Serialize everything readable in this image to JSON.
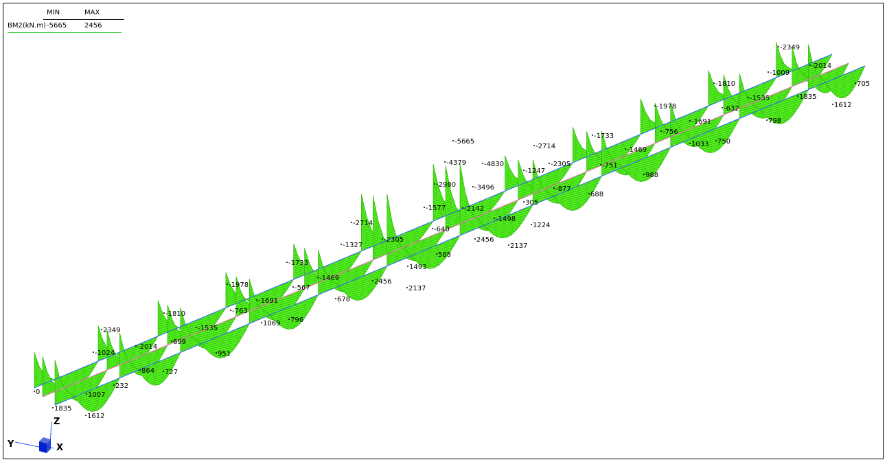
{
  "legend": {
    "col_min": "MIN",
    "col_max": "MAX",
    "quantity": "BM2(kN.m)",
    "min_value": "-5665",
    "max_value": "2456",
    "line_color": "#33cc33"
  },
  "colors": {
    "fill": "#55ee22",
    "hatch": "#22aa00",
    "beam": "#3366ff",
    "beam_accent": "#ff66cc",
    "cube": "#0022cc"
  },
  "axes": {
    "z": "Z",
    "y": "Y",
    "x": "X"
  },
  "values": [
    "2349",
    "-1024",
    "-2014",
    "864",
    "727",
    "699",
    "-1535",
    "951",
    "-1810",
    "-763",
    "-1691",
    "1069",
    "796",
    "-1978",
    "-567",
    "-1469",
    "678",
    "-1733",
    "-1327",
    "-2305",
    "2456",
    "2137",
    "1493",
    "588",
    "-2714",
    "-1577",
    "-640",
    "-2980",
    "-4379",
    "-5665",
    "-4830",
    "-3496",
    "-2142",
    "-1498",
    "2456",
    "2137",
    "305",
    "1224",
    "-1247",
    "-2714",
    "-2305",
    "-877",
    "688",
    "-1733",
    "-751",
    "-1469",
    "988",
    "-1978",
    "-756",
    "-1691",
    "1033",
    "750",
    "-1810",
    "-632",
    "-1535",
    "798",
    "-1009",
    "-2349",
    "-2014",
    "1835",
    "1612",
    "705",
    "0",
    "1835",
    "1612",
    "1007",
    "232"
  ]
}
